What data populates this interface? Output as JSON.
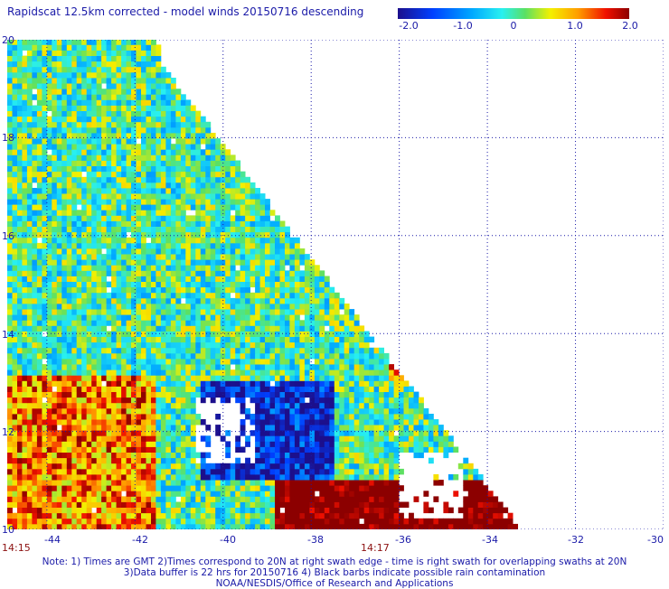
{
  "title": "Rapidscat 12.5km corrected - model winds 20150716 descending",
  "colorbar": {
    "ticks": [
      {
        "label": "-2.0",
        "value": -2.0
      },
      {
        "label": "-1.0",
        "value": -1.0
      },
      {
        "label": "0",
        "value": 0
      },
      {
        "label": "1.0",
        "value": 1.0
      },
      {
        "label": "2.0",
        "value": 2.0
      }
    ]
  },
  "axes": {
    "y_ticks": [
      {
        "label": "20",
        "value": 20
      },
      {
        "label": "18",
        "value": 18
      },
      {
        "label": "16",
        "value": 16
      },
      {
        "label": "14",
        "value": 14
      },
      {
        "label": "12",
        "value": 12
      },
      {
        "label": "10",
        "value": 10
      }
    ],
    "x_ticks": [
      {
        "label": "-44",
        "value": -44
      },
      {
        "label": "-42",
        "value": -42
      },
      {
        "label": "-40",
        "value": -40
      },
      {
        "label": "-38",
        "value": -38
      },
      {
        "label": "-36",
        "value": -36
      },
      {
        "label": "-34",
        "value": -34
      },
      {
        "label": "-32",
        "value": -32
      },
      {
        "label": "-30",
        "value": -30
      }
    ],
    "lon_range": [
      -44.9,
      -30
    ],
    "lat_range": [
      10,
      20
    ]
  },
  "time_labels": [
    {
      "label": "14:15",
      "lon": -44.9
    },
    {
      "label": "14:17",
      "lon": -37.0
    }
  ],
  "notes": {
    "line1": "Note: 1) Times are GMT 2)Times correspond to 20N at right swath edge - time is right swath for overlapping swaths at 20N",
    "line2": "3)Data buffer is 22 hrs for 20150716 4) Black barbs indicate possible rain contamination",
    "line3": "NOAA/NESDIS/Office of Research and Applications"
  },
  "colors": {
    "text": "#1a1aa8",
    "time_text": "#8c1010",
    "grid": "#1a1aa8"
  }
}
